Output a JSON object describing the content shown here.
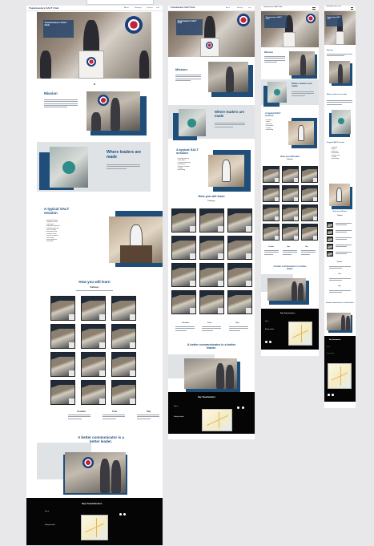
{
  "window": {
    "width": 467,
    "height": 681
  },
  "site": {
    "brand": "Toastmasters SALT Club",
    "nav_links": [
      "About",
      "Meetings",
      "Contact",
      "Join"
    ],
    "hero_text": "Toastmasters SALT Club"
  },
  "sections": {
    "mission_title": "Mission",
    "leaders_title": "Where leaders are made",
    "session_title": "A typical SALT session",
    "learn_title": "How you will learn",
    "learn_sub": "Pathways",
    "tile_label": "Pathways",
    "columns": [
      "Visualize",
      "Train",
      "Play"
    ],
    "cta_title": "A better communicator is a better leader.",
    "footer_title": "Say Toastmasters",
    "footer_links": [
      "Join us",
      "Meeting schedule"
    ]
  },
  "colors": {
    "accent": "#1f4e7a",
    "band": "#dfe3e6",
    "footer": "#050505"
  }
}
